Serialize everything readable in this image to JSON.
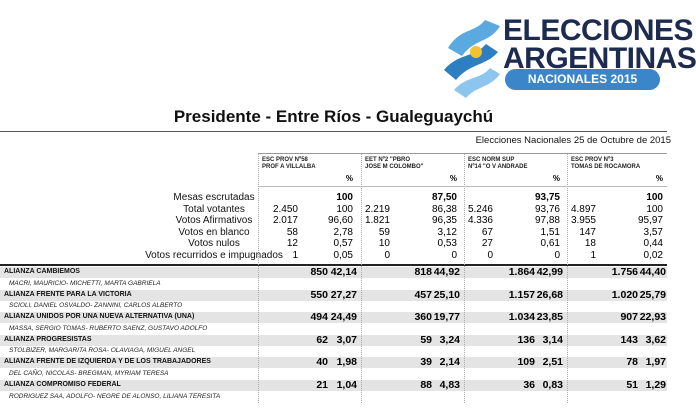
{
  "logo": {
    "line1": "ELECCIONES",
    "line2": "ARGENTINAS",
    "badge": "NACIONALES 2015"
  },
  "header": {
    "title": "Presidente - Entre Ríos - Gualeguaychú",
    "subtitle": "Elecciones Nacionales 25 de Octubre de 2015"
  },
  "table": {
    "columns": [
      {
        "name": [
          "ESC PROV Nº58",
          "PROF A VILLALBA"
        ],
        "pct_header": "%"
      },
      {
        "name": [
          "EET Nº2 \"PBRO",
          "JOSE M COLOMBO\""
        ],
        "pct_header": "%"
      },
      {
        "name": [
          "ESC NORM SUP",
          "Nº14 \"O V ANDRADE"
        ],
        "pct_header": "%"
      },
      {
        "name": [
          "ESC PROV Nº3",
          "TOMAS DE ROCAMORA"
        ],
        "pct_header": "%"
      }
    ],
    "summary_rows": [
      {
        "label": "Mesas escrutadas",
        "cells": [
          [
            null,
            "100"
          ],
          [
            null,
            "87,50"
          ],
          [
            null,
            "93,75"
          ],
          [
            null,
            "100"
          ]
        ]
      },
      {
        "label": "Total votantes",
        "cells": [
          [
            "2.450",
            "100"
          ],
          [
            "2.219",
            "86,38"
          ],
          [
            "5.246",
            "93,76"
          ],
          [
            "4.897",
            "100"
          ]
        ]
      },
      {
        "label": "Votos Afirmativos",
        "cells": [
          [
            "2.017",
            "96,60"
          ],
          [
            "1.821",
            "96,35"
          ],
          [
            "4.336",
            "97,88"
          ],
          [
            "3.955",
            "95,97"
          ]
        ]
      },
      {
        "label": "Votos en blanco",
        "cells": [
          [
            "58",
            "2,78"
          ],
          [
            "59",
            "3,12"
          ],
          [
            "67",
            "1,51"
          ],
          [
            "147",
            "3,57"
          ]
        ]
      },
      {
        "label": "Votos nulos",
        "cells": [
          [
            "12",
            "0,57"
          ],
          [
            "10",
            "0,53"
          ],
          [
            "27",
            "0,61"
          ],
          [
            "18",
            "0,44"
          ]
        ]
      },
      {
        "label": "Votos recurridos e impugnados",
        "cells": [
          [
            "1",
            "0,05"
          ],
          [
            "0",
            "0"
          ],
          [
            "0",
            "0"
          ],
          [
            "1",
            "0,02"
          ]
        ]
      }
    ],
    "parties": [
      {
        "name": "ALIANZA CAMBIEMOS",
        "candidates": "MACRI, MAURICIO- MICHETTI, MARTA GABRIELA",
        "cells": [
          [
            "850",
            "42,14"
          ],
          [
            "818",
            "44,92"
          ],
          [
            "1.864",
            "42,99"
          ],
          [
            "1.756",
            "44,40"
          ]
        ]
      },
      {
        "name": "ALIANZA FRENTE PARA LA VICTORIA",
        "candidates": "SCIOLI, DANIEL OSVALDO- ZANNINI, CARLOS ALBERTO",
        "cells": [
          [
            "550",
            "27,27"
          ],
          [
            "457",
            "25,10"
          ],
          [
            "1.157",
            "26,68"
          ],
          [
            "1.020",
            "25,79"
          ]
        ]
      },
      {
        "name": "ALIANZA UNIDOS POR UNA NUEVA ALTERNATIVA (UNA)",
        "candidates": "MASSA, SERGIO TOMAS- RUBERTO SAENZ, GUSTAVO ADOLFO",
        "cells": [
          [
            "494",
            "24,49"
          ],
          [
            "360",
            "19,77"
          ],
          [
            "1.034",
            "23,85"
          ],
          [
            "907",
            "22,93"
          ]
        ]
      },
      {
        "name": "ALIANZA PROGRESISTAS",
        "candidates": "STOLBIZER, MARGARITA ROSA- OLAVIAGA, MIGUEL ANGEL",
        "cells": [
          [
            "62",
            "3,07"
          ],
          [
            "59",
            "3,24"
          ],
          [
            "136",
            "3,14"
          ],
          [
            "143",
            "3,62"
          ]
        ]
      },
      {
        "name": "ALIANZA FRENTE DE IZQUIERDA Y DE LOS TRABAJADORES",
        "candidates": "DEL CAÑO, NICOLAS- BREGMAN, MYRIAM TERESA",
        "cells": [
          [
            "40",
            "1,98"
          ],
          [
            "39",
            "2,14"
          ],
          [
            "109",
            "2,51"
          ],
          [
            "78",
            "1,97"
          ]
        ]
      },
      {
        "name": "ALIANZA COMPROMISO FEDERAL",
        "candidates": "RODRIGUEZ SAA, ADOLFO- NEGRE DE ALONSO, LILIANA TERESITA",
        "cells": [
          [
            "21",
            "1,04"
          ],
          [
            "88",
            "4,83"
          ],
          [
            "36",
            "0,83"
          ],
          [
            "51",
            "1,29"
          ]
        ]
      }
    ]
  }
}
